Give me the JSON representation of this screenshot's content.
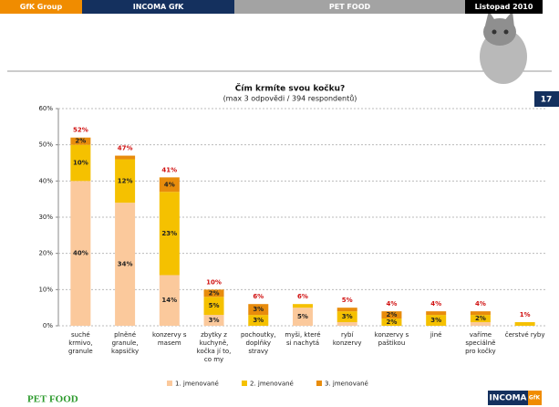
{
  "header": {
    "left": "GfK Group",
    "brand": "INCOMA GfK",
    "topic": "PET FOOD",
    "date": "Listopad 2010"
  },
  "page_number": "17",
  "footer": {
    "left": "PET FOOD",
    "logo_main": "INCOMA",
    "logo_sub": "GfK"
  },
  "chart_data": {
    "type": "stacked_bar",
    "title": "Čím krmíte svou kočku?",
    "subtitle": "(max 3 odpovědi / 394 respondentů)",
    "categories": [
      "suché krmivo, granule",
      "plněné granule, kapsičky",
      "konzervy s masem",
      "zbytky z kuchyně, kočka jí to, co my",
      "pochoutky, doplňky stravy",
      "myši, které si nachytá",
      "rybí konzervy",
      "konzervy s paštikou",
      "jiné",
      "vaříme speciálně pro kočky",
      "čerstvé ryby"
    ],
    "series": [
      {
        "name": "1. jmenované",
        "color": "#fbc99c",
        "values": [
          40,
          34,
          14,
          3,
          0,
          5,
          1,
          0,
          0,
          1,
          0
        ],
        "value_labels": [
          "40%",
          "34%",
          "14%",
          "3%",
          null,
          "5%",
          null,
          null,
          null,
          null,
          null
        ]
      },
      {
        "name": "2. jmenované",
        "color": "#f5c100",
        "values": [
          10,
          12,
          23,
          5,
          3,
          1,
          3,
          2,
          3,
          2,
          1
        ],
        "value_labels": [
          "10%",
          "12%",
          "23%",
          "5%",
          "3%",
          null,
          "3%",
          "2%",
          "3%",
          "2%",
          null
        ]
      },
      {
        "name": "3. jmenované",
        "color": "#e88c0c",
        "values": [
          2,
          1,
          4,
          2,
          3,
          0,
          1,
          2,
          1,
          1,
          0
        ],
        "value_labels": [
          "2%",
          null,
          "4%",
          "2%",
          "3%",
          null,
          null,
          "2%",
          null,
          null,
          null
        ]
      }
    ],
    "totals": [
      52,
      47,
      41,
      10,
      6,
      6,
      5,
      4,
      4,
      4,
      1
    ],
    "totals_labels": [
      "52%",
      "47%",
      "41%",
      "10%",
      "6%",
      "6%",
      "5%",
      "4%",
      "4%",
      "4%",
      "1%"
    ],
    "ylim": [
      0,
      60
    ],
    "yticks": [
      {
        "value": 0,
        "label": "0%"
      },
      {
        "value": 10,
        "label": "10%"
      },
      {
        "value": 20,
        "label": "20%"
      },
      {
        "value": 30,
        "label": "30%"
      },
      {
        "value": 40,
        "label": "40%"
      },
      {
        "value": 50,
        "label": "50%"
      },
      {
        "value": 60,
        "label": "60%"
      }
    ],
    "grid": true
  }
}
